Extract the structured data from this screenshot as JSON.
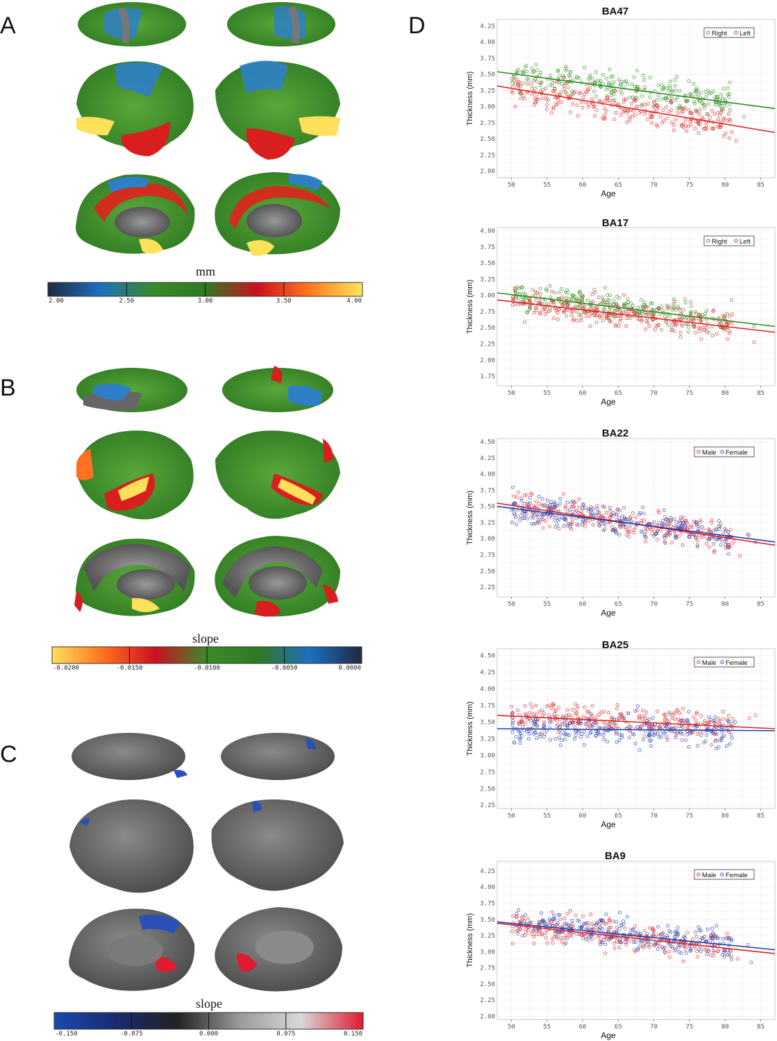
{
  "panel_labels": {
    "a": "A",
    "b": "B",
    "c": "C",
    "d": "D"
  },
  "colorbars": {
    "a": {
      "title": "mm",
      "ticks": [
        "2.00",
        "2.50",
        "3.00",
        "3.50",
        "4.00"
      ],
      "colors": [
        "#1f2a40",
        "#1d6fc0",
        "#3a8a2a",
        "#2f7a22",
        "#cc1020",
        "#ff7a20",
        "#ffe65a"
      ]
    },
    "b": {
      "title": "slope",
      "ticks": [
        "-0.0200",
        "-0.0150",
        "-0.0100",
        "-0.0050",
        "0.0000"
      ],
      "colors": [
        "#ffe05a",
        "#ff7020",
        "#cc1020",
        "#3a8a2a",
        "#2f7a22",
        "#1d6fc0",
        "#1f2a40"
      ]
    },
    "c": {
      "title": "slope",
      "ticks": [
        "-0.150",
        "-0.075",
        "0.000",
        "0.075",
        "0.150"
      ],
      "colors": [
        "#1a4ab0",
        "#1a2a70",
        "#222222",
        "#9a9a9a",
        "#d8d8d8",
        "#e01a30"
      ]
    }
  },
  "chart_data": [
    {
      "type": "scatter",
      "title": "BA47",
      "xlabel": "Age",
      "ylabel": "Thickness (mm)",
      "xlim": [
        48,
        87
      ],
      "ylim": [
        1.9,
        4.35
      ],
      "xticks": [
        "50",
        "55",
        "60",
        "65",
        "70",
        "75",
        "80",
        "85"
      ],
      "yticks": [
        "2.00",
        "2.25",
        "2.50",
        "2.75",
        "3.00",
        "3.25",
        "3.50",
        "3.75",
        "4.00",
        "4.25"
      ],
      "legend_position": "top-right",
      "grid": true,
      "series": [
        {
          "name": "Right",
          "color": "#2e8b20",
          "fit": [
            [
              48,
              3.54
            ],
            [
              87,
              2.97
            ]
          ]
        },
        {
          "name": "Left",
          "color": "#e02020",
          "fit": [
            [
              48,
              3.32
            ],
            [
              87,
              2.6
            ]
          ]
        }
      ]
    },
    {
      "type": "scatter",
      "title": "BA17",
      "xlabel": "Age",
      "ylabel": "Thickness (mm)",
      "xlim": [
        48,
        87
      ],
      "ylim": [
        1.6,
        4.05
      ],
      "xticks": [
        "50",
        "55",
        "60",
        "65",
        "70",
        "75",
        "80",
        "85"
      ],
      "yticks": [
        "1.75",
        "2.00",
        "2.25",
        "2.50",
        "2.75",
        "3.00",
        "3.25",
        "3.50",
        "3.75",
        "4.00"
      ],
      "legend_position": "top-right",
      "grid": true,
      "series": [
        {
          "name": "Right",
          "color": "#2e8b20",
          "fit": [
            [
              48,
              3.04
            ],
            [
              87,
              2.52
            ]
          ]
        },
        {
          "name": "Left",
          "color": "#e02020",
          "fit": [
            [
              48,
              2.93
            ],
            [
              87,
              2.43
            ]
          ]
        }
      ]
    },
    {
      "type": "scatter",
      "title": "BA22",
      "xlabel": "Age",
      "ylabel": "Thickness (mm)",
      "xlim": [
        48,
        87
      ],
      "ylim": [
        2.1,
        4.55
      ],
      "xticks": [
        "50",
        "55",
        "60",
        "65",
        "70",
        "75",
        "80",
        "85"
      ],
      "yticks": [
        "2.25",
        "2.50",
        "2.75",
        "3.00",
        "3.25",
        "3.50",
        "3.75",
        "4.00",
        "4.25",
        "4.50"
      ],
      "legend_position": "top-right",
      "grid": true,
      "series": [
        {
          "name": "Male",
          "color": "#e02020",
          "fit": [
            [
              48,
              3.55
            ],
            [
              87,
              2.9
            ]
          ]
        },
        {
          "name": "Female",
          "color": "#2040b0",
          "fit": [
            [
              48,
              3.5
            ],
            [
              87,
              2.95
            ]
          ]
        }
      ]
    },
    {
      "type": "scatter",
      "title": "BA25",
      "xlabel": "Age",
      "ylabel": "Thickness (mm)",
      "xlim": [
        48,
        87
      ],
      "ylim": [
        2.2,
        4.6
      ],
      "xticks": [
        "50",
        "55",
        "60",
        "65",
        "70",
        "75",
        "80",
        "85"
      ],
      "yticks": [
        "2.25",
        "2.50",
        "2.75",
        "3.00",
        "3.25",
        "3.50",
        "3.75",
        "4.00",
        "4.25",
        "4.50"
      ],
      "legend_position": "top-right",
      "grid": true,
      "series": [
        {
          "name": "Male",
          "color": "#e02020",
          "fit": [
            [
              48,
              3.6
            ],
            [
              87,
              3.4
            ]
          ]
        },
        {
          "name": "Female",
          "color": "#2040b0",
          "fit": [
            [
              48,
              3.4
            ],
            [
              87,
              3.37
            ]
          ]
        }
      ]
    },
    {
      "type": "scatter",
      "title": "BA9",
      "xlabel": "Age",
      "ylabel": "Thickness (mm)",
      "xlim": [
        48,
        87
      ],
      "ylim": [
        1.95,
        4.4
      ],
      "xticks": [
        "50",
        "55",
        "60",
        "65",
        "70",
        "75",
        "80",
        "85"
      ],
      "yticks": [
        "2.00",
        "2.25",
        "2.50",
        "2.75",
        "3.00",
        "3.25",
        "3.50",
        "3.75",
        "4.00",
        "4.25"
      ],
      "legend_position": "top-right",
      "grid": true,
      "series": [
        {
          "name": "Male",
          "color": "#e02020",
          "fit": [
            [
              48,
              3.44
            ],
            [
              87,
              2.97
            ]
          ]
        },
        {
          "name": "Female",
          "color": "#2040b0",
          "fit": [
            [
              48,
              3.46
            ],
            [
              87,
              3.03
            ]
          ]
        }
      ]
    }
  ]
}
